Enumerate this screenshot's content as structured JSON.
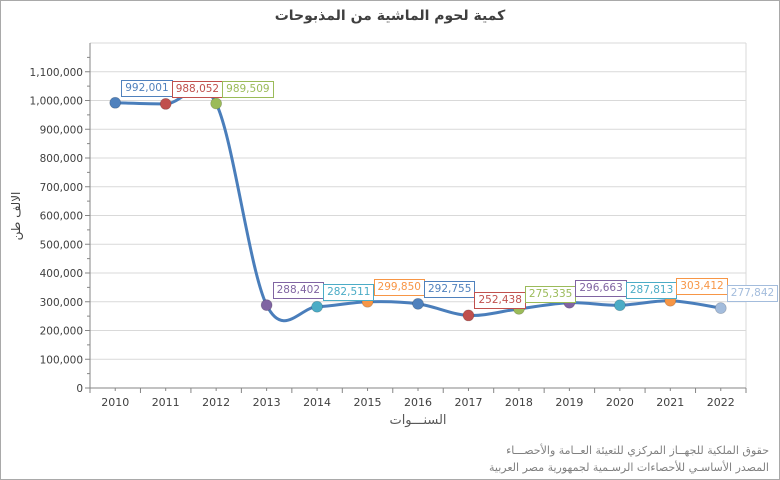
{
  "title": "كمية لحوم الماشية من المذبوحات",
  "y_axis_title": "الالف طن",
  "x_axis_title": "السنـــوات",
  "source_line1": "حقوق الملكية للجهــاز المركزي للتعيئة العــامة والأحصـــاء",
  "source_line2": "المصدر الأساسـي للأحصاءات الرسـمية لجمهورية مصر العربية",
  "chart_data": {
    "type": "line",
    "smooth": true,
    "title": "كمية لحوم الماشية من المذبوحات",
    "xlabel": "السنـــوات",
    "ylabel": "الالف طن",
    "categories": [
      "2010",
      "2011",
      "2012",
      "2013",
      "2014",
      "2015",
      "2016",
      "2017",
      "2018",
      "2019",
      "2020",
      "2021",
      "2022"
    ],
    "values": [
      992001,
      988052,
      989509,
      288402,
      282511,
      299850,
      292755,
      252438,
      275335,
      296663,
      287813,
      303412,
      277842
    ],
    "data_labels": [
      "992,001",
      "988,052",
      "989,509",
      "288,402",
      "282,511",
      "299,850",
      "292,755",
      "252,438",
      "275,335",
      "296,663",
      "287,813",
      "303,412",
      "277,842"
    ],
    "point_colors": [
      "#4F81BD",
      "#C0504D",
      "#9BBB59",
      "#8064A2",
      "#4BACC6",
      "#F79646",
      "#4F81BD",
      "#C0504D",
      "#9BBB59",
      "#8064A2",
      "#4BACC6",
      "#F79646",
      "#A3BCDC"
    ],
    "line_color": "#4A7EBB",
    "ylim": [
      0,
      1200000
    ],
    "ytick_step": 100000,
    "ytick_labeled_max": 1100000,
    "grid": true,
    "legend": "none"
  },
  "colors": {
    "gridline": "#D9D9D9",
    "plot_border": "#D9D9D9",
    "axis_line": "#868686",
    "tick_label": "#404040",
    "title_text": "#3F3F3F",
    "source_text": "#808080",
    "background": "#FFFFFF"
  }
}
